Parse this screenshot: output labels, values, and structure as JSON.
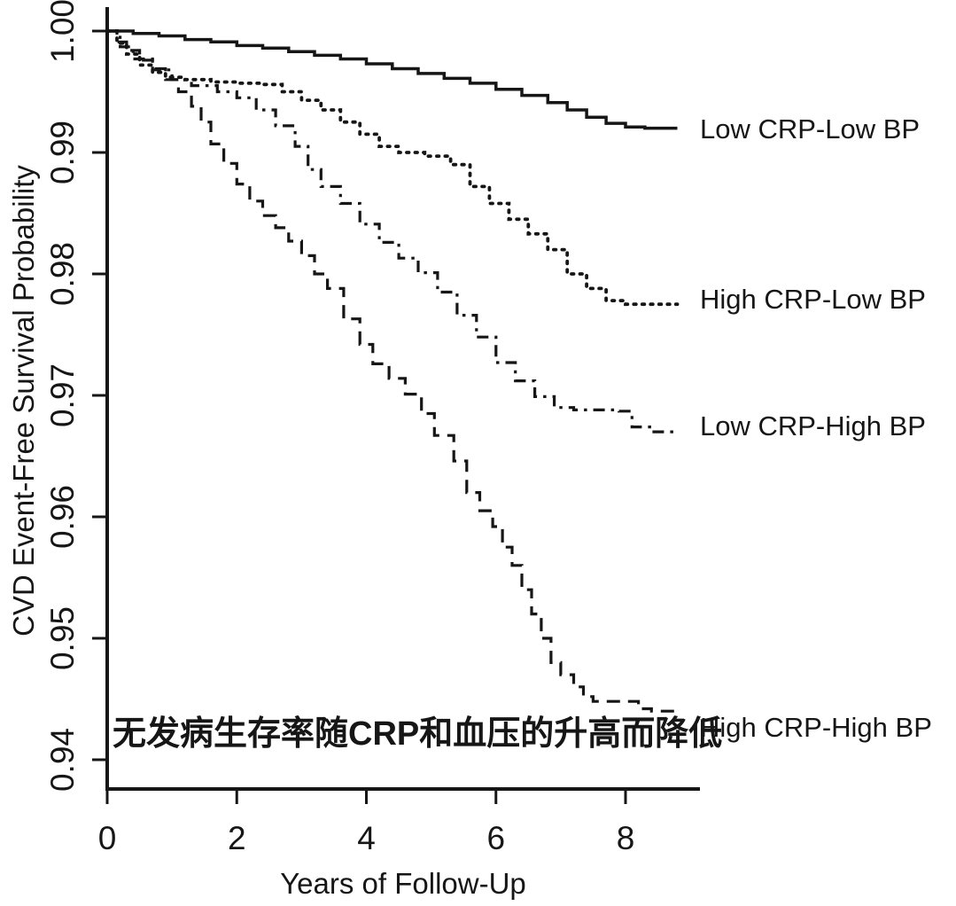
{
  "chart_data": {
    "type": "line",
    "subtype": "kaplan-meier-step-curves",
    "title": "",
    "xlabel": "Years of Follow-Up",
    "ylabel": "CVD Event-Free Survival Probability",
    "xlim": [
      0,
      9.2
    ],
    "ylim": [
      0.9375,
      1.002
    ],
    "grid": false,
    "legend_position": "right-of-curve-ends",
    "axis_color": "#161616",
    "x_ticks": [
      {
        "label": "0",
        "value": 0
      },
      {
        "label": "2",
        "value": 2
      },
      {
        "label": "4",
        "value": 4
      },
      {
        "label": "6",
        "value": 6
      },
      {
        "label": "8",
        "value": 8
      }
    ],
    "y_ticks": [
      {
        "label": "1.00",
        "value": 1.0
      },
      {
        "label": "0.99",
        "value": 0.99
      },
      {
        "label": "0.98",
        "value": 0.98
      },
      {
        "label": "0.97",
        "value": 0.97
      },
      {
        "label": "0.96",
        "value": 0.96
      },
      {
        "label": "0.95",
        "value": 0.95
      },
      {
        "label": "0.94",
        "value": 0.94
      }
    ],
    "annotation": {
      "text": "无发病生存率随CRP和血压的升高而降低",
      "color": "#e53935"
    },
    "series": [
      {
        "name": "Low CRP-Low BP",
        "style": "solid",
        "points": [
          [
            0,
            1.0
          ],
          [
            0.4,
            0.9998
          ],
          [
            0.8,
            0.9996
          ],
          [
            1.2,
            0.9993
          ],
          [
            1.6,
            0.9991
          ],
          [
            2.0,
            0.9988
          ],
          [
            2.4,
            0.9986
          ],
          [
            2.8,
            0.9983
          ],
          [
            3.2,
            0.998
          ],
          [
            3.6,
            0.9977
          ],
          [
            4.0,
            0.9973
          ],
          [
            4.4,
            0.9969
          ],
          [
            4.8,
            0.9965
          ],
          [
            5.2,
            0.9961
          ],
          [
            5.6,
            0.9957
          ],
          [
            6.0,
            0.9952
          ],
          [
            6.4,
            0.9947
          ],
          [
            6.8,
            0.9941
          ],
          [
            7.1,
            0.9935
          ],
          [
            7.4,
            0.9929
          ],
          [
            7.7,
            0.9924
          ],
          [
            8.0,
            0.9921
          ],
          [
            8.3,
            0.992
          ],
          [
            8.8,
            0.992
          ]
        ]
      },
      {
        "name": "High CRP-Low BP",
        "style": "dotted",
        "points": [
          [
            0,
            1.0
          ],
          [
            0.15,
            0.999
          ],
          [
            0.3,
            0.9981
          ],
          [
            0.5,
            0.9972
          ],
          [
            0.7,
            0.9966
          ],
          [
            0.9,
            0.9962
          ],
          [
            1.2,
            0.996
          ],
          [
            1.6,
            0.9958
          ],
          [
            2.0,
            0.9957
          ],
          [
            2.4,
            0.9956
          ],
          [
            2.7,
            0.995
          ],
          [
            3.0,
            0.9943
          ],
          [
            3.3,
            0.9935
          ],
          [
            3.6,
            0.9925
          ],
          [
            3.9,
            0.9915
          ],
          [
            4.2,
            0.9905
          ],
          [
            4.5,
            0.99
          ],
          [
            4.9,
            0.9897
          ],
          [
            5.3,
            0.989
          ],
          [
            5.6,
            0.9872
          ],
          [
            5.9,
            0.9858
          ],
          [
            6.2,
            0.9845
          ],
          [
            6.5,
            0.9833
          ],
          [
            6.8,
            0.982
          ],
          [
            7.1,
            0.98
          ],
          [
            7.4,
            0.9788
          ],
          [
            7.7,
            0.9778
          ],
          [
            8.0,
            0.9775
          ],
          [
            8.8,
            0.9775
          ]
        ]
      },
      {
        "name": "Low CRP-High BP",
        "style": "dashdot",
        "points": [
          [
            0,
            1.0
          ],
          [
            0.2,
            0.9987
          ],
          [
            0.4,
            0.9977
          ],
          [
            0.7,
            0.9968
          ],
          [
            1.0,
            0.996
          ],
          [
            1.3,
            0.9955
          ],
          [
            1.7,
            0.995
          ],
          [
            2.0,
            0.9945
          ],
          [
            2.3,
            0.9935
          ],
          [
            2.6,
            0.9922
          ],
          [
            2.9,
            0.9905
          ],
          [
            3.1,
            0.9886
          ],
          [
            3.3,
            0.9872
          ],
          [
            3.6,
            0.9858
          ],
          [
            3.9,
            0.9841
          ],
          [
            4.2,
            0.9826
          ],
          [
            4.5,
            0.9813
          ],
          [
            4.8,
            0.9801
          ],
          [
            5.1,
            0.9785
          ],
          [
            5.4,
            0.9766
          ],
          [
            5.7,
            0.9748
          ],
          [
            6.0,
            0.9727
          ],
          [
            6.3,
            0.9712
          ],
          [
            6.6,
            0.9699
          ],
          [
            6.9,
            0.969
          ],
          [
            7.2,
            0.9688
          ],
          [
            7.9,
            0.9687
          ],
          [
            8.1,
            0.9674
          ],
          [
            8.4,
            0.967
          ],
          [
            8.8,
            0.967
          ]
        ]
      },
      {
        "name": "High CRP-High BP",
        "style": "dashed",
        "points": [
          [
            0,
            1.0
          ],
          [
            0.15,
            0.9991
          ],
          [
            0.3,
            0.9984
          ],
          [
            0.5,
            0.9976
          ],
          [
            0.7,
            0.9969
          ],
          [
            0.9,
            0.996
          ],
          [
            1.1,
            0.995
          ],
          [
            1.3,
            0.9938
          ],
          [
            1.45,
            0.9925
          ],
          [
            1.6,
            0.9907
          ],
          [
            1.8,
            0.9891
          ],
          [
            2.0,
            0.9874
          ],
          [
            2.2,
            0.986
          ],
          [
            2.4,
            0.9848
          ],
          [
            2.6,
            0.9838
          ],
          [
            2.8,
            0.9827
          ],
          [
            3.0,
            0.9815
          ],
          [
            3.2,
            0.98
          ],
          [
            3.4,
            0.9788
          ],
          [
            3.65,
            0.9763
          ],
          [
            3.9,
            0.9742
          ],
          [
            4.1,
            0.9726
          ],
          [
            4.35,
            0.9714
          ],
          [
            4.6,
            0.9701
          ],
          [
            4.85,
            0.9685
          ],
          [
            5.05,
            0.9667
          ],
          [
            5.35,
            0.9646
          ],
          [
            5.55,
            0.962
          ],
          [
            5.75,
            0.9605
          ],
          [
            5.95,
            0.9592
          ],
          [
            6.1,
            0.9575
          ],
          [
            6.25,
            0.956
          ],
          [
            6.4,
            0.954
          ],
          [
            6.55,
            0.952
          ],
          [
            6.7,
            0.95
          ],
          [
            6.85,
            0.948
          ],
          [
            7.0,
            0.947
          ],
          [
            7.2,
            0.946
          ],
          [
            7.35,
            0.9452
          ],
          [
            7.5,
            0.9448
          ],
          [
            8.1,
            0.9448
          ],
          [
            8.2,
            0.9442
          ],
          [
            8.4,
            0.944
          ],
          [
            8.8,
            0.944
          ]
        ]
      }
    ]
  }
}
